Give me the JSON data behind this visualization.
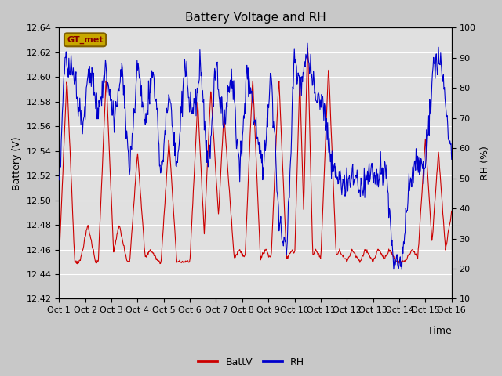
{
  "title": "Battery Voltage and RH",
  "xlabel": "Time",
  "ylabel_left": "Battery (V)",
  "ylabel_right": "RH (%)",
  "legend_label": "GT_met",
  "x_tick_labels": [
    "Oct 1",
    "Oct 2",
    "Oct 3",
    "Oct 4",
    "Oct 5",
    "Oct 6",
    "Oct 7",
    "Oct 8",
    "Oct 9",
    "Oct 10",
    "Oct 11",
    "Oct 12",
    "Oct 13",
    "Oct 14",
    "Oct 15",
    "Oct 16"
  ],
  "ylim_left": [
    12.42,
    12.64
  ],
  "ylim_right": [
    10,
    100
  ],
  "yticks_left": [
    12.42,
    12.44,
    12.46,
    12.48,
    12.5,
    12.52,
    12.54,
    12.56,
    12.58,
    12.6,
    12.62,
    12.64
  ],
  "yticks_right": [
    10,
    20,
    30,
    40,
    50,
    60,
    70,
    80,
    90,
    100
  ],
  "fig_bg_color": "#c8c8c8",
  "plot_bg_color": "#e0e0e0",
  "grid_color": "#ffffff",
  "line_color_batt": "#cc0000",
  "line_color_rh": "#0000cc",
  "title_fontsize": 11,
  "axis_label_fontsize": 9,
  "tick_fontsize": 8,
  "legend_box_facecolor": "#c8a800",
  "legend_box_edgecolor": "#806000",
  "legend_text_color": "#880000",
  "num_points": 720
}
